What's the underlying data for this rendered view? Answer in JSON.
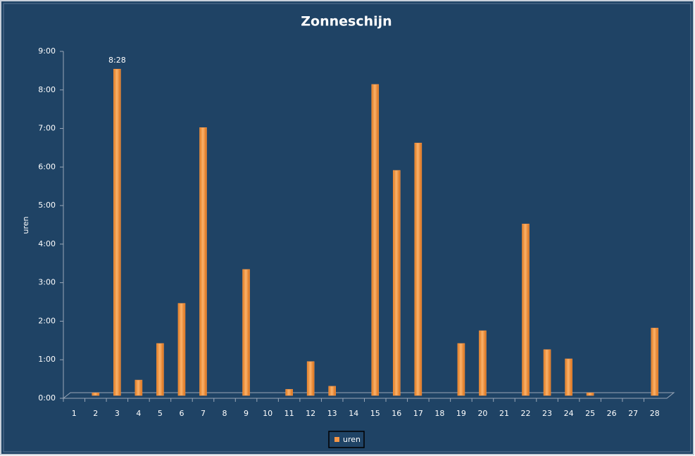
{
  "chart_data": {
    "type": "bar",
    "title": "Zonneschijn",
    "ylabel": "uren",
    "categories": [
      "1",
      "2",
      "3",
      "4",
      "5",
      "6",
      "7",
      "8",
      "9",
      "10",
      "11",
      "12",
      "13",
      "14",
      "15",
      "16",
      "17",
      "18",
      "19",
      "20",
      "21",
      "22",
      "23",
      "24",
      "25",
      "26",
      "27",
      "28"
    ],
    "series": [
      {
        "name": "uren",
        "color": "#f79646",
        "values": [
          0,
          0.07,
          8.4667,
          0.4,
          1.35,
          2.39,
          6.95,
          0,
          3.27,
          0,
          0.16,
          0.88,
          0.24,
          0,
          8.07,
          5.84,
          6.55,
          0,
          1.35,
          1.68,
          0,
          4.45,
          1.19,
          0.95,
          0.07,
          0,
          0,
          1.75
        ],
        "value_labels": [
          null,
          null,
          "8:28",
          null,
          null,
          null,
          null,
          null,
          null,
          null,
          null,
          null,
          null,
          null,
          null,
          null,
          null,
          null,
          null,
          null,
          null,
          null,
          null,
          null,
          null,
          null,
          null,
          null
        ]
      }
    ],
    "ylim": [
      0,
      9
    ],
    "yticks": [
      {
        "value": 0,
        "label": "0:00"
      },
      {
        "value": 1,
        "label": "1:00"
      },
      {
        "value": 2,
        "label": "2:00"
      },
      {
        "value": 3,
        "label": "3:00"
      },
      {
        "value": 4,
        "label": "4:00"
      },
      {
        "value": 5,
        "label": "5:00"
      },
      {
        "value": 6,
        "label": "6:00"
      },
      {
        "value": 7,
        "label": "7:00"
      },
      {
        "value": 8,
        "label": "8:00"
      },
      {
        "value": 9,
        "label": "9:00"
      }
    ],
    "grid": false,
    "legend": "bottom"
  }
}
